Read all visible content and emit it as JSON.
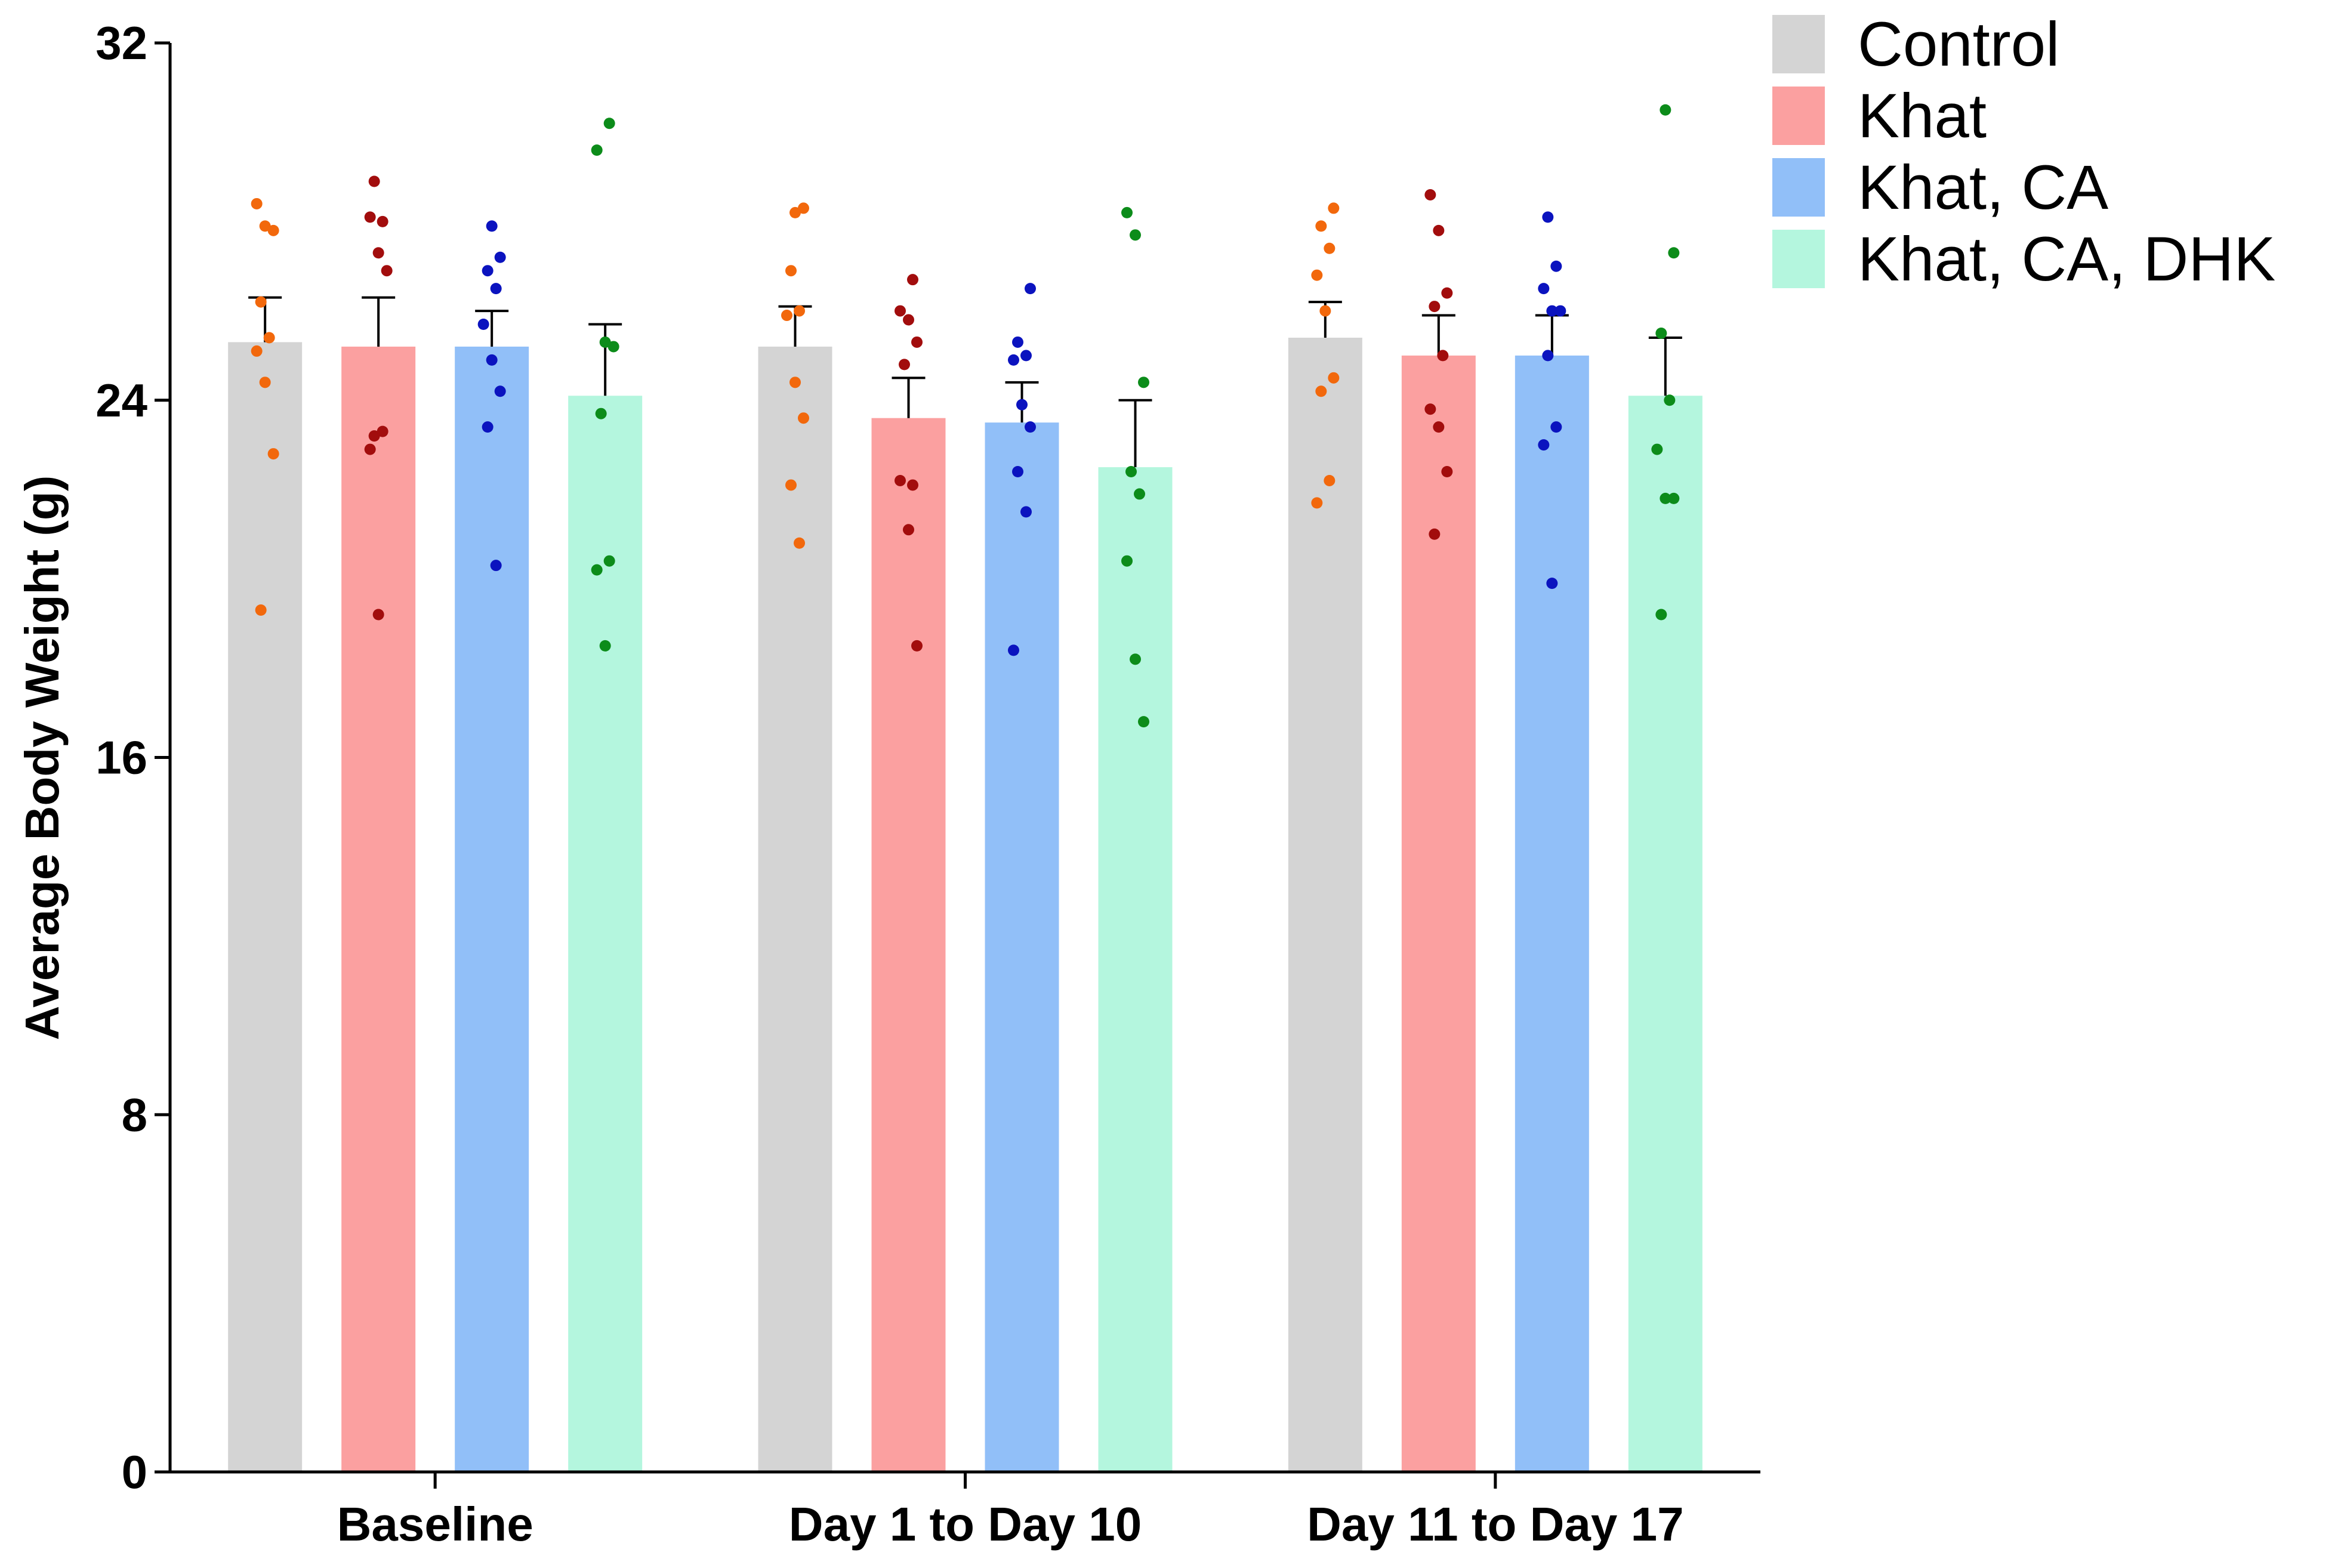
{
  "chart_data": {
    "type": "bar",
    "title": "",
    "xlabel": "",
    "ylabel": "Average Body Weight (g)",
    "ylim": [
      0,
      32
    ],
    "yticks": [
      0,
      8,
      16,
      24,
      32
    ],
    "categories": [
      "Baseline",
      "Day 1 to Day 10",
      "Day 11 to Day 17"
    ],
    "legend_position": "top-right",
    "series": [
      {
        "name": "Control",
        "bar_color": "#d4d4d4",
        "dot_color": "#f2680c",
        "values": [
          25.3,
          25.2,
          25.4
        ],
        "sem": [
          1.0,
          0.9,
          0.8
        ],
        "points": [
          [
            28.4,
            27.9,
            27.8,
            26.2,
            25.4,
            25.1,
            24.4,
            22.8,
            19.3
          ],
          [
            28.2,
            28.3,
            26.9,
            26.0,
            25.9,
            24.4,
            23.6,
            22.1,
            20.8
          ],
          [
            28.3,
            27.9,
            27.4,
            26.8,
            26.0,
            24.5,
            24.2,
            22.2,
            21.7
          ]
        ]
      },
      {
        "name": "Khat",
        "bar_color": "#fba0a0",
        "dot_color": "#a20d0d",
        "values": [
          25.2,
          23.6,
          25.0
        ],
        "sem": [
          1.1,
          0.9,
          0.9
        ],
        "points": [
          [
            28.9,
            28.0,
            28.1,
            27.3,
            26.9,
            23.2,
            23.3,
            22.9,
            19.2
          ],
          [
            26.7,
            26.0,
            25.8,
            25.3,
            24.8,
            22.1,
            22.2,
            21.1,
            18.5
          ],
          [
            28.6,
            27.8,
            26.4,
            26.1,
            25.0,
            23.8,
            23.4,
            22.4,
            21.0
          ]
        ]
      },
      {
        "name": "Khat, CA",
        "bar_color": "#91bff8",
        "dot_color": "#0b13bf",
        "values": [
          25.2,
          23.5,
          25.0
        ],
        "sem": [
          0.8,
          0.9,
          0.9
        ],
        "points": [
          [
            27.9,
            27.2,
            26.9,
            26.5,
            25.7,
            24.9,
            24.2,
            23.4,
            20.3
          ],
          [
            26.5,
            25.3,
            25.0,
            24.9,
            23.9,
            23.4,
            22.4,
            21.5,
            18.4
          ],
          [
            28.1,
            27.0,
            26.5,
            26.0,
            26.0,
            25.0,
            23.4,
            23.0,
            19.9
          ]
        ]
      },
      {
        "name": "Khat, CA, DHK",
        "bar_color": "#b4f6de",
        "dot_color": "#0c8c1a",
        "values": [
          24.1,
          22.5,
          24.1
        ],
        "sem": [
          1.6,
          1.5,
          1.3
        ],
        "points": [
          [
            30.2,
            29.6,
            25.3,
            25.2,
            23.7,
            20.4,
            20.2,
            18.5
          ],
          [
            28.2,
            27.7,
            24.4,
            22.4,
            21.9,
            20.4,
            18.2,
            16.8
          ],
          [
            30.5,
            27.3,
            25.5,
            24.0,
            22.9,
            21.8,
            21.8,
            19.2
          ]
        ]
      }
    ]
  }
}
